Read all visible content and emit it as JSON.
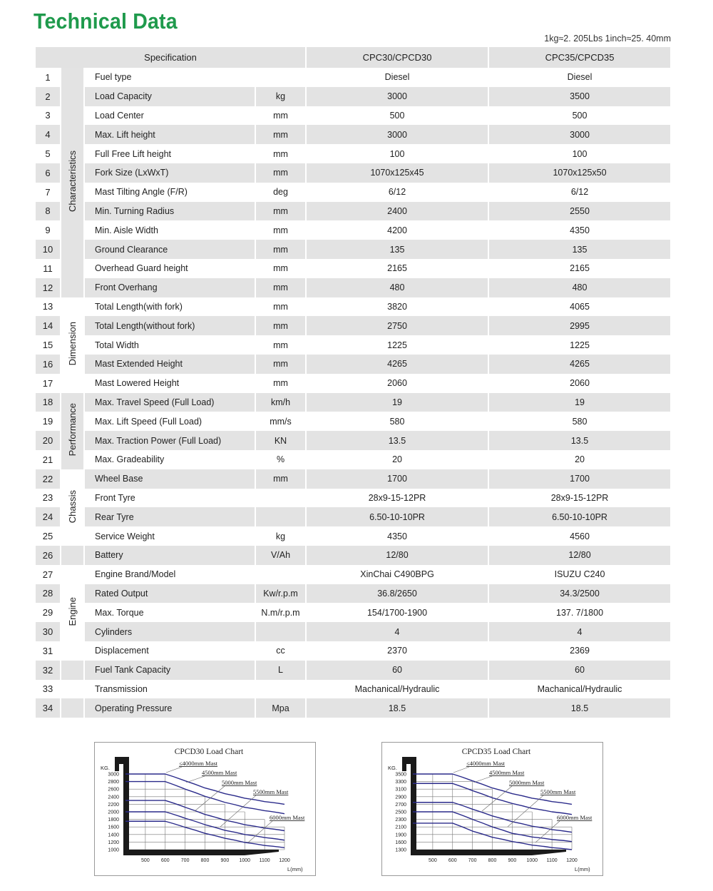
{
  "header": {
    "title": "Technical Data",
    "conversion_note": "1kg≈2. 205Lbs   1inch≈25. 40mm"
  },
  "table": {
    "columns": [
      "Specification",
      "CPC30/CPCD30",
      "CPC35/CPCD35"
    ],
    "groups": [
      {
        "label": "Characteristics",
        "start": 1,
        "end": 12,
        "shaded": true
      },
      {
        "label": "Dimension",
        "start": 13,
        "end": 17,
        "shaded": false
      },
      {
        "label": "Performance",
        "start": 18,
        "end": 21,
        "shaded": true
      },
      {
        "label": "Chassis",
        "start": 22,
        "end": 25,
        "shaded": false
      },
      {
        "label": "Engine",
        "start": 27,
        "end": 31,
        "shaded": false
      }
    ],
    "rows": [
      {
        "no": "1",
        "spec": "Fuel type",
        "unit": "",
        "cpc30": "Diesel",
        "cpc35": "Diesel"
      },
      {
        "no": "2",
        "spec": "Load Capacity",
        "unit": "kg",
        "cpc30": "3000",
        "cpc35": "3500"
      },
      {
        "no": "3",
        "spec": "Load Center",
        "unit": "mm",
        "cpc30": "500",
        "cpc35": "500"
      },
      {
        "no": "4",
        "spec": "Max. Lift height",
        "unit": "mm",
        "cpc30": "3000",
        "cpc35": "3000"
      },
      {
        "no": "5",
        "spec": "Full Free Lift height",
        "unit": "mm",
        "cpc30": "100",
        "cpc35": "100"
      },
      {
        "no": "6",
        "spec": "Fork Size (LxWxT)",
        "unit": "mm",
        "cpc30": "1070x125x45",
        "cpc35": "1070x125x50"
      },
      {
        "no": "7",
        "spec": "Mast Tilting Angle (F/R)",
        "unit": "deg",
        "cpc30": "6/12",
        "cpc35": "6/12"
      },
      {
        "no": "8",
        "spec": "Min. Turning Radius",
        "unit": "mm",
        "cpc30": "2400",
        "cpc35": "2550"
      },
      {
        "no": "9",
        "spec": "Min. Aisle Width",
        "unit": "mm",
        "cpc30": "4200",
        "cpc35": "4350"
      },
      {
        "no": "10",
        "spec": "Ground Clearance",
        "unit": "mm",
        "cpc30": "135",
        "cpc35": "135"
      },
      {
        "no": "11",
        "spec": "Overhead Guard height",
        "unit": "mm",
        "cpc30": "2165",
        "cpc35": "2165"
      },
      {
        "no": "12",
        "spec": "Front Overhang",
        "unit": "mm",
        "cpc30": "480",
        "cpc35": "480"
      },
      {
        "no": "13",
        "spec": "Total Length(with fork)",
        "unit": "mm",
        "cpc30": "3820",
        "cpc35": "4065"
      },
      {
        "no": "14",
        "spec": "Total Length(without fork)",
        "unit": "mm",
        "cpc30": "2750",
        "cpc35": "2995"
      },
      {
        "no": "15",
        "spec": "Total Width",
        "unit": "mm",
        "cpc30": "1225",
        "cpc35": "1225"
      },
      {
        "no": "16",
        "spec": "Mast Extended Height",
        "unit": "mm",
        "cpc30": "4265",
        "cpc35": "4265"
      },
      {
        "no": "17",
        "spec": "Mast Lowered Height",
        "unit": "mm",
        "cpc30": "2060",
        "cpc35": "2060"
      },
      {
        "no": "18",
        "spec": "Max. Travel Speed (Full Load)",
        "unit": "km/h",
        "cpc30": "19",
        "cpc35": "19"
      },
      {
        "no": "19",
        "spec": "Max. Lift Speed (Full Load)",
        "unit": "mm/s",
        "cpc30": "580",
        "cpc35": "580"
      },
      {
        "no": "20",
        "spec": "Max. Traction Power (Full Load)",
        "unit": "KN",
        "cpc30": "13.5",
        "cpc35": "13.5"
      },
      {
        "no": "21",
        "spec": "Max. Gradeability",
        "unit": "%",
        "cpc30": "20",
        "cpc35": "20"
      },
      {
        "no": "22",
        "spec": "Wheel Base",
        "unit": "mm",
        "cpc30": "1700",
        "cpc35": "1700"
      },
      {
        "no": "23",
        "spec": "Front Tyre",
        "unit": "",
        "cpc30": "28x9-15-12PR",
        "cpc35": "28x9-15-12PR"
      },
      {
        "no": "24",
        "spec": "Rear Tyre",
        "unit": "",
        "cpc30": "6.50-10-10PR",
        "cpc35": "6.50-10-10PR"
      },
      {
        "no": "25",
        "spec": "Service Weight",
        "unit": "kg",
        "cpc30": "4350",
        "cpc35": "4560"
      },
      {
        "no": "26",
        "spec": "Battery",
        "unit": "V/Ah",
        "cpc30": "12/80",
        "cpc35": "12/80"
      },
      {
        "no": "27",
        "spec": "Engine Brand/Model",
        "unit": "",
        "cpc30": "XinChai C490BPG",
        "cpc35": "ISUZU C240"
      },
      {
        "no": "28",
        "spec": "Rated Output",
        "unit": "Kw/r.p.m",
        "cpc30": "36.8/2650",
        "cpc35": "34.3/2500"
      },
      {
        "no": "29",
        "spec": "Max. Torque",
        "unit": "N.m/r.p.m",
        "cpc30": "154/1700-1900",
        "cpc35": "137. 7/1800"
      },
      {
        "no": "30",
        "spec": "Cylinders",
        "unit": "",
        "cpc30": "4",
        "cpc35": "4"
      },
      {
        "no": "31",
        "spec": "Displacement",
        "unit": "cc",
        "cpc30": "2370",
        "cpc35": "2369"
      },
      {
        "no": "32",
        "spec": "Fuel Tank Capacity",
        "unit": "L",
        "cpc30": "60",
        "cpc35": "60"
      },
      {
        "no": "33",
        "spec": "Transmission",
        "unit": "",
        "cpc30": "Machanical/Hydraulic",
        "cpc35": "Machanical/Hydraulic"
      },
      {
        "no": "34",
        "spec": "Operating  Pressure",
        "unit": "Mpa",
        "cpc30": "18.5",
        "cpc35": "18.5"
      }
    ]
  },
  "colors": {
    "title": "#1f9a4c",
    "stripe": "#e3e3e3",
    "curve": "#2a2a8a"
  },
  "chart_data": [
    {
      "type": "line",
      "title": "CPCD30 Load Chart",
      "ylabel": "KG.",
      "xlabel": "L(mm)",
      "x_ticks": [
        500,
        600,
        700,
        800,
        900,
        1000,
        1100,
        1200
      ],
      "y_ticks": [
        3000,
        2800,
        2600,
        2400,
        2200,
        2000,
        1800,
        1600,
        1400,
        1200,
        1000
      ],
      "xlim": [
        400,
        1200
      ],
      "x": [
        400,
        600,
        700,
        800,
        900,
        1000,
        1100,
        1200
      ],
      "grid_steps": [
        3000,
        3000,
        2600,
        2400,
        2200,
        2000,
        1800,
        1600
      ],
      "series": [
        {
          "name": "≤4000mm  Mast",
          "values": [
            3000,
            3000,
            2820,
            2630,
            2480,
            2360,
            2270,
            2200
          ]
        },
        {
          "name": "4500mm  Mast",
          "values": [
            2800,
            2800,
            2600,
            2410,
            2250,
            2120,
            2030,
            1950
          ]
        },
        {
          "name": "5000mm  Mast",
          "values": [
            2300,
            2300,
            2120,
            1930,
            1780,
            1660,
            1570,
            1500
          ]
        },
        {
          "name": "5500mm  Mast",
          "values": [
            2000,
            2000,
            1830,
            1660,
            1510,
            1400,
            1320,
            1250
          ]
        },
        {
          "name": "6000mm  Mast",
          "values": [
            1750,
            1750,
            1590,
            1430,
            1300,
            1190,
            1110,
            1050
          ]
        }
      ]
    },
    {
      "type": "line",
      "title": "CPCD35 Load Chart",
      "ylabel": "KG.",
      "xlabel": "L(mm)",
      "x_ticks": [
        500,
        600,
        700,
        800,
        900,
        1000,
        1100,
        1200
      ],
      "y_ticks": [
        3500,
        3300,
        3100,
        2900,
        2700,
        2500,
        2300,
        2100,
        1900,
        1600,
        1300
      ],
      "xlim": [
        400,
        1200
      ],
      "x": [
        400,
        600,
        700,
        800,
        900,
        1000,
        1100,
        1200
      ],
      "grid_steps": [
        3500,
        3500,
        3300,
        3100,
        2700,
        2500,
        2300,
        2100
      ],
      "series": [
        {
          "name": "≤4000mm  Mast",
          "values": [
            3500,
            3500,
            3320,
            3130,
            2980,
            2860,
            2770,
            2700
          ]
        },
        {
          "name": "4500mm  Mast",
          "values": [
            3250,
            3250,
            3060,
            2870,
            2720,
            2590,
            2500,
            2430
          ]
        },
        {
          "name": "5000mm  Mast",
          "values": [
            2750,
            2750,
            2570,
            2390,
            2240,
            2120,
            2030,
            1960
          ]
        },
        {
          "name": "5500mm  Mast",
          "values": [
            2500,
            2500,
            2300,
            2100,
            1930,
            1800,
            1700,
            1620
          ]
        },
        {
          "name": "6000mm  Mast",
          "values": [
            2200,
            2200,
            1990,
            1790,
            1620,
            1480,
            1380,
            1300
          ]
        }
      ]
    }
  ]
}
